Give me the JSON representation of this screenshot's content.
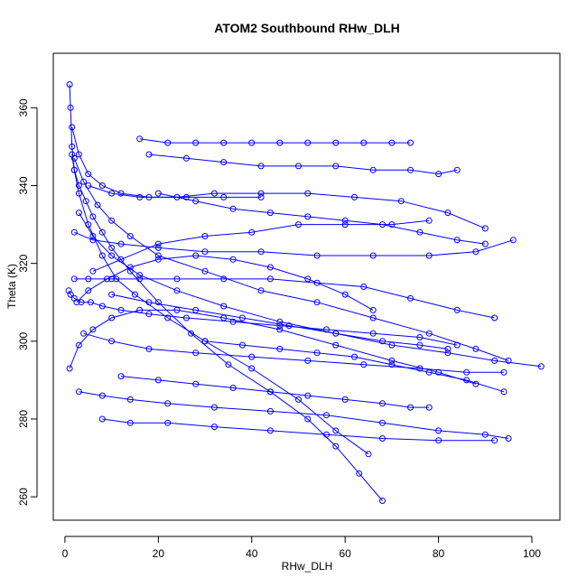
{
  "chart_data": {
    "type": "line",
    "title": "ATOM2 Southbound RHw_DLH",
    "xlabel": "RHw_DLH",
    "ylabel": "Theta (K)",
    "xlim": [
      -2.5,
      106
    ],
    "ylim": [
      254,
      374
    ],
    "x_ticks": [
      0,
      20,
      40,
      60,
      80,
      100
    ],
    "y_ticks": [
      260,
      280,
      300,
      320,
      340,
      360
    ],
    "x_tick_labels": [
      "0",
      "20",
      "40",
      "60",
      "80",
      "100"
    ],
    "y_tick_labels": [
      "260",
      "280",
      "300",
      "320",
      "340",
      "360"
    ],
    "grid": false,
    "legend": "none",
    "series_color": "#0000FF",
    "marker": "open-circle",
    "series": [
      {
        "x": [
          1.0,
          1.2,
          1.5,
          2.0,
          3.0,
          4.5,
          6.0,
          8.0,
          10.0,
          14.0,
          20.0,
          27.0,
          35.0,
          44.0,
          52.0,
          58.0,
          63.0,
          68.0
        ],
        "y": [
          366.0,
          360.0,
          350.0,
          344.0,
          340.0,
          336.0,
          332.0,
          328.0,
          324.0,
          318.0,
          310.0,
          302.0,
          294.0,
          287.0,
          280.0,
          273.0,
          266.0,
          259.0
        ]
      },
      {
        "x": [
          1.5,
          2.0,
          3.0,
          5.0,
          8.0,
          11.0,
          15.0,
          22.0,
          30.0,
          40.0,
          50.0,
          58.0,
          65.0
        ],
        "y": [
          348.0,
          344.0,
          338.0,
          330.0,
          322.0,
          316.0,
          312.0,
          306.0,
          300.0,
          293.0,
          285.0,
          277.0,
          271.0
        ]
      },
      {
        "x": [
          0.8,
          1.2,
          2.0,
          3.5,
          5.5,
          8.0,
          12.0,
          18.0,
          26.0,
          36.0,
          46.0,
          56.0,
          66.0,
          76.0,
          84.0
        ],
        "y": [
          313.0,
          312.0,
          311.0,
          310.0,
          310.0,
          309.0,
          308.0,
          307.0,
          306.0,
          305.0,
          304.0,
          303.0,
          302.0,
          301.0,
          299.0
        ]
      },
      {
        "x": [
          16.0,
          22.0,
          28.0,
          34.0,
          40.0,
          46.0,
          52.0,
          58.0,
          64.0,
          70.0,
          74.0
        ],
        "y": [
          352.0,
          351.0,
          351.0,
          351.0,
          351.0,
          351.0,
          351.0,
          351.0,
          351.0,
          351.0,
          351.0
        ]
      },
      {
        "x": [
          2.0,
          4.0,
          7.0,
          10.0,
          14.0,
          20.0,
          30.0,
          42.0,
          54.0,
          66.0,
          78.0,
          88.0,
          95.0
        ],
        "y": [
          347.0,
          341.0,
          335.0,
          331.0,
          327.0,
          322.0,
          318.0,
          313.0,
          310.0,
          306.0,
          302.0,
          298.0,
          295.0
        ]
      },
      {
        "x": [
          3.0,
          6.0,
          10.0,
          16.0,
          24.0,
          34.0,
          46.0,
          58.0,
          70.0,
          82.0,
          92.0,
          102.0
        ],
        "y": [
          333.0,
          327.0,
          322.0,
          317.0,
          313.0,
          309.0,
          305.0,
          302.0,
          299.0,
          297.0,
          295.0,
          293.5
        ]
      },
      {
        "x": [
          1.0,
          3.0,
          6.0,
          10.0,
          16.0,
          24.0,
          34.0,
          46.0,
          58.0,
          70.0,
          80.0,
          88.0
        ],
        "y": [
          293.0,
          299.0,
          303.0,
          306.0,
          308.0,
          308.0,
          306.0,
          303.0,
          299.0,
          295.0,
          292.0,
          289.0
        ]
      },
      {
        "x": [
          3.0,
          8.0,
          14.0,
          22.0,
          32.0,
          44.0,
          56.0,
          68.0,
          80.0,
          90.0,
          95.0
        ],
        "y": [
          287.0,
          286.0,
          285.0,
          284.0,
          283.0,
          282.0,
          281.0,
          279.0,
          277.0,
          276.0,
          275.0
        ]
      },
      {
        "x": [
          8.0,
          14.0,
          22.0,
          32.0,
          44.0,
          56.0,
          68.0,
          80.0,
          92.0
        ],
        "y": [
          280.0,
          279.0,
          279.0,
          278.0,
          277.0,
          276.0,
          275.0,
          274.5,
          274.5
        ]
      },
      {
        "x": [
          2.0,
          6.0,
          12.0,
          20.0,
          30.0,
          42.0,
          54.0,
          66.0,
          78.0,
          88.0,
          96.0
        ],
        "y": [
          328.0,
          326.0,
          325.0,
          324.0,
          323.0,
          323.0,
          322.0,
          322.0,
          322.0,
          323.0,
          326.0
        ]
      },
      {
        "x": [
          18.0,
          26.0,
          34.0,
          42.0,
          50.0,
          58.0,
          66.0,
          74.0,
          80.0,
          84.0
        ],
        "y": [
          348.0,
          347.0,
          346.0,
          345.0,
          345.0,
          345.0,
          344.0,
          344.0,
          343.0,
          344.0
        ]
      },
      {
        "x": [
          5.0,
          10.0,
          16.0,
          24.0,
          32.0,
          42.0,
          52.0,
          62.0,
          72.0,
          82.0,
          90.0
        ],
        "y": [
          340.0,
          338.0,
          337.0,
          337.0,
          338.0,
          338.0,
          338.0,
          337.0,
          336.0,
          333.0,
          329.0
        ]
      },
      {
        "x": [
          2.0,
          5.0,
          10.0,
          16.0,
          24.0,
          34.0,
          44.0,
          54.0,
          64.0,
          74.0,
          84.0,
          92.0
        ],
        "y": [
          316.0,
          316.0,
          316.0,
          316.0,
          316.0,
          316.0,
          316.0,
          315.0,
          314.0,
          311.0,
          308.0,
          306.0
        ]
      },
      {
        "x": [
          4.0,
          10.0,
          18.0,
          28.0,
          40.0,
          52.0,
          64.0,
          76.0,
          86.0,
          94.0
        ],
        "y": [
          302.0,
          300.0,
          298.0,
          297.0,
          296.0,
          295.0,
          294.0,
          293.0,
          292.0,
          292.0
        ]
      },
      {
        "x": [
          6.0,
          12.0,
          20.0,
          30.0,
          40.0,
          50.0,
          60.0,
          70.0,
          78.0
        ],
        "y": [
          318.0,
          321.0,
          325.0,
          327.0,
          328.0,
          330.0,
          330.0,
          330.0,
          331.0
        ]
      },
      {
        "x": [
          10.0,
          18.0,
          28.0,
          38.0,
          48.0,
          58.0,
          68.0,
          76.0,
          82.0
        ],
        "y": [
          312.0,
          310.0,
          308.0,
          306.0,
          304.0,
          302.0,
          300.0,
          299.0,
          298.0
        ]
      },
      {
        "x": [
          12.0,
          20.0,
          28.0,
          36.0,
          44.0,
          52.0,
          60.0,
          68.0,
          74.0,
          78.0
        ],
        "y": [
          291.0,
          290.0,
          289.0,
          288.0,
          287.0,
          286.0,
          285.0,
          284.0,
          283.0,
          283.0
        ]
      },
      {
        "x": [
          1.5,
          3.0,
          5.0,
          8.0,
          12.0,
          18.0,
          26.0,
          34.0,
          42.0
        ],
        "y": [
          355.0,
          348.0,
          343.0,
          340.0,
          338.0,
          337.0,
          337.0,
          337.0,
          337.0
        ]
      },
      {
        "x": [
          2.5,
          5.0,
          9.0,
          14.0,
          20.0,
          28.0,
          36.0,
          44.0,
          52.0,
          60.0,
          66.0
        ],
        "y": [
          310.0,
          313.0,
          316.0,
          319.0,
          321.0,
          322.0,
          321.0,
          319.0,
          316.0,
          312.0,
          308.0
        ]
      },
      {
        "x": [
          20.0,
          28.0,
          36.0,
          44.0,
          52.0,
          60.0,
          68.0,
          76.0,
          84.0,
          90.0
        ],
        "y": [
          338.0,
          336.0,
          334.0,
          333.0,
          332.0,
          331.0,
          330.0,
          328.0,
          326.0,
          325.0
        ]
      },
      {
        "x": [
          30.0,
          38.0,
          46.0,
          54.0,
          62.0,
          70.0,
          78.0,
          86.0,
          94.0
        ],
        "y": [
          300.0,
          299.0,
          298.0,
          297.0,
          296.0,
          294.0,
          292.0,
          290.0,
          287.0
        ]
      }
    ]
  }
}
